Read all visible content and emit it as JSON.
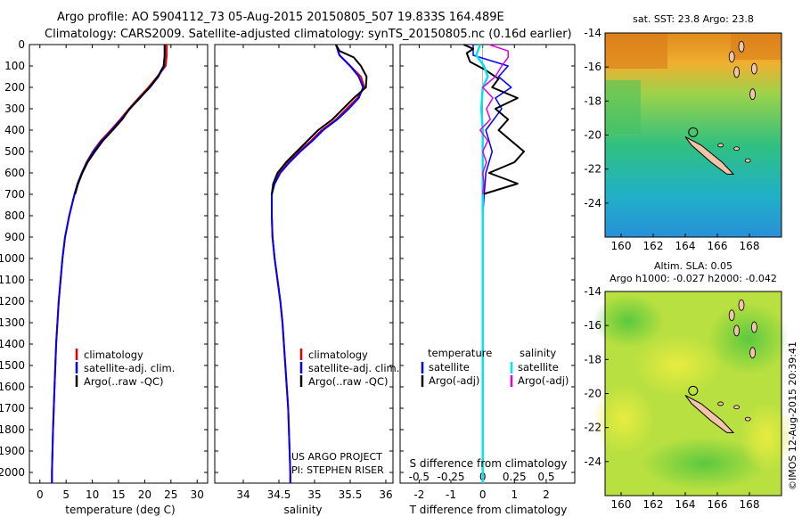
{
  "header": {
    "title_line1": "Argo profile: AO 5904112_73 05-Aug-2015 20150805_507 19.833S 164.489E",
    "title_line2": "Climatology: CARS2009. Satellite-adjusted climatology: synTS_20150805.nc (0.16d earlier)"
  },
  "colors": {
    "climatology": "#e00000",
    "satellite": "#0000ff",
    "argo": "#000000",
    "salinity_satellite": "#00e5ee",
    "salinity_argo": "#e000e0"
  },
  "depth_axis": {
    "ticks": [
      "0",
      "100",
      "200",
      "300",
      "400",
      "500",
      "600",
      "700",
      "800",
      "900",
      "1000",
      "1100",
      "1200",
      "1300",
      "1400",
      "1500",
      "1600",
      "1700",
      "1800",
      "1900",
      "2000"
    ],
    "range": [
      0,
      2050
    ]
  },
  "chart_data": [
    {
      "type": "line",
      "id": "temperature",
      "xlabel": "temperature (deg C)",
      "xlim": [
        -2,
        32
      ],
      "xticks": [
        "0",
        "5",
        "10",
        "15",
        "20",
        "25",
        "30"
      ],
      "legend": [
        "climatology",
        "satellite-adj. clim.",
        "Argo(..raw -QC)"
      ],
      "series": [
        {
          "name": "climatology",
          "depth": [
            0,
            50,
            100,
            150,
            200,
            250,
            300,
            350,
            400,
            450,
            500,
            550,
            600,
            650,
            700,
            800,
            900,
            1000,
            1200,
            1400,
            1600,
            1800,
            2000,
            2050
          ],
          "values": [
            24.2,
            24.2,
            24.0,
            22.4,
            20.7,
            18.8,
            17.0,
            15.3,
            13.5,
            11.6,
            10.1,
            8.9,
            8.0,
            7.2,
            6.6,
            5.6,
            4.8,
            4.3,
            3.6,
            3.1,
            2.8,
            2.5,
            2.3,
            2.3
          ]
        },
        {
          "name": "satellite-adj. clim.",
          "depth": [
            0,
            50,
            100,
            150,
            200,
            250,
            300,
            350,
            400,
            450,
            500,
            550,
            600,
            650,
            700,
            800,
            900,
            1000,
            1200,
            1400,
            1600,
            1800,
            2000,
            2050
          ],
          "values": [
            23.8,
            23.8,
            23.7,
            22.6,
            21.0,
            19.0,
            17.2,
            15.5,
            13.7,
            11.8,
            10.2,
            9.0,
            8.0,
            7.2,
            6.6,
            5.6,
            4.8,
            4.3,
            3.6,
            3.1,
            2.8,
            2.5,
            2.3,
            2.3
          ]
        },
        {
          "name": "Argo(..raw -QC)",
          "depth": [
            0,
            20,
            50,
            100,
            150,
            200,
            250,
            300,
            350,
            400,
            450,
            500,
            550,
            600,
            650,
            700
          ],
          "values": [
            23.8,
            23.8,
            23.8,
            23.6,
            22.5,
            20.9,
            19.1,
            17.1,
            15.7,
            13.9,
            12.0,
            10.5,
            9.1,
            8.1,
            7.3,
            6.7
          ]
        }
      ]
    },
    {
      "type": "line",
      "id": "salinity",
      "xlabel": "salinity",
      "xlim": [
        33.6,
        36.1
      ],
      "xticks": [
        "34",
        "34.5",
        "35",
        "35.5",
        "36"
      ],
      "legend": [
        "climatology",
        "satellite-adj. clim.",
        "Argo(..raw -QC)"
      ],
      "annotation": [
        "US ARGO PROJECT",
        "PI: STEPHEN RISER"
      ],
      "series": [
        {
          "name": "climatology",
          "depth": [
            0,
            50,
            100,
            150,
            200,
            250,
            300,
            350,
            400,
            450,
            500,
            550,
            600,
            650,
            700,
            800,
            900,
            1000,
            1100,
            1200,
            1300,
            1400,
            1500,
            1600,
            1700,
            1800,
            1900,
            2000,
            2050
          ],
          "values": [
            35.3,
            35.35,
            35.5,
            35.65,
            35.7,
            35.6,
            35.45,
            35.3,
            35.1,
            34.95,
            34.78,
            34.63,
            34.5,
            34.43,
            34.4,
            34.4,
            34.41,
            34.44,
            34.48,
            34.52,
            34.55,
            34.57,
            34.59,
            34.61,
            34.63,
            34.64,
            34.65,
            34.66,
            34.66
          ]
        },
        {
          "name": "satellite-adj. clim.",
          "depth": [
            0,
            50,
            100,
            150,
            200,
            250,
            300,
            350,
            400,
            450,
            500,
            550,
            600,
            650,
            700,
            800,
            900,
            1000,
            1100,
            1200,
            1300,
            1400,
            1500,
            1600,
            1700,
            1800,
            1900,
            2000,
            2050
          ],
          "values": [
            35.3,
            35.35,
            35.5,
            35.62,
            35.68,
            35.62,
            35.48,
            35.32,
            35.12,
            34.97,
            34.8,
            34.65,
            34.52,
            34.44,
            34.4,
            34.4,
            34.41,
            34.44,
            34.48,
            34.52,
            34.55,
            34.57,
            34.59,
            34.61,
            34.63,
            34.64,
            34.65,
            34.66,
            34.66
          ]
        },
        {
          "name": "Argo(..raw -QC)",
          "depth": [
            0,
            30,
            60,
            100,
            150,
            200,
            250,
            300,
            350,
            400,
            450,
            500,
            550,
            600,
            650,
            700
          ],
          "values": [
            35.3,
            35.35,
            35.55,
            35.65,
            35.73,
            35.72,
            35.55,
            35.4,
            35.25,
            35.05,
            34.9,
            34.75,
            34.6,
            34.48,
            34.42,
            34.4
          ]
        }
      ]
    },
    {
      "type": "line",
      "id": "differences",
      "xlabel": "T difference from climatology",
      "xlabel_top": "S difference from climatology",
      "xlim": [
        -2.6,
        2.9
      ],
      "xticks": [
        "-2",
        "-1",
        "0",
        "1",
        "2"
      ],
      "xticks_top": [
        "-0.5",
        "-0.25",
        "0",
        "0.25",
        "0.5"
      ],
      "legend_titles": [
        "temperature",
        "salinity"
      ],
      "legend_temperature": [
        "satellite",
        "Argo(-adj)"
      ],
      "legend_salinity": [
        "satellite",
        "Argo(-adj)"
      ],
      "series": [
        {
          "name": "temperature satellite",
          "depth": [
            0,
            50,
            100,
            150,
            200,
            250,
            300,
            400,
            500,
            600,
            700,
            800,
            1000,
            1500,
            2000,
            2050
          ],
          "values": [
            -0.3,
            -0.3,
            0.8,
            0.5,
            0.9,
            0.4,
            0.6,
            0.1,
            0.3,
            0.1,
            0.05,
            0.0,
            0.0,
            0.0,
            0.0,
            0.0
          ]
        },
        {
          "name": "temperature Argo(-adj)",
          "depth": [
            0,
            20,
            40,
            80,
            120,
            160,
            200,
            250,
            300,
            350,
            400,
            450,
            500,
            550,
            600,
            650,
            700
          ],
          "values": [
            -0.6,
            -0.3,
            -0.5,
            -0.4,
            0.1,
            0.5,
            0.3,
            1.1,
            0.4,
            0.8,
            0.5,
            0.9,
            1.3,
            1.0,
            0.2,
            1.1,
            0.0
          ]
        },
        {
          "name": "salinity satellite",
          "depth": [
            0,
            50,
            100,
            150,
            200,
            300,
            400,
            500,
            600,
            700,
            800,
            1000,
            1500,
            2000,
            2050
          ],
          "values": [
            -0.02,
            -0.05,
            0.01,
            0.04,
            0.0,
            -0.01,
            0.0,
            0.0,
            0.0,
            0.0,
            0.0,
            0.0,
            0.0,
            0.0,
            0.0
          ]
        },
        {
          "name": "salinity Argo(-adj)",
          "depth": [
            0,
            30,
            60,
            100,
            150,
            200,
            250,
            300,
            350,
            400,
            450,
            500,
            550,
            600,
            650,
            700
          ],
          "values": [
            0.05,
            0.2,
            0.2,
            0.15,
            0.1,
            0.0,
            0.08,
            0.03,
            0.06,
            -0.02,
            0.04,
            0.0,
            0.03,
            0.0,
            0.01,
            0.0
          ]
        }
      ]
    },
    {
      "type": "heatmap",
      "id": "sst_map",
      "title": "sat. SST: 23.8  Argo: 23.8",
      "xticks": [
        "160",
        "162",
        "164",
        "166",
        "168"
      ],
      "yticks": [
        "-14",
        "-16",
        "-18",
        "-20",
        "-22",
        "-24"
      ],
      "xlim": [
        159,
        170
      ],
      "ylim": [
        -26,
        -14
      ],
      "argo_position": {
        "lon": 164.489,
        "lat": -19.833
      }
    },
    {
      "type": "heatmap",
      "id": "sla_map",
      "title_line1": "Altim. SLA: 0.05",
      "title_line2": "Argo h1000: -0.027  h2000: -0.042",
      "xticks": [
        "160",
        "162",
        "164",
        "166",
        "168"
      ],
      "yticks": [
        "-14",
        "-16",
        "-18",
        "-20",
        "-22",
        "-24"
      ],
      "xlim": [
        159,
        170
      ],
      "ylim": [
        -26,
        -14
      ],
      "argo_position": {
        "lon": 164.489,
        "lat": -19.833
      }
    }
  ],
  "credit": "©IMOS 12-Aug-2015 20:39:41"
}
